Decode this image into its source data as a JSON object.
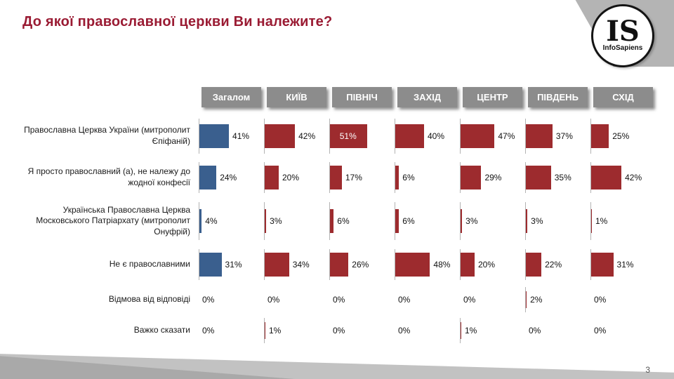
{
  "page": {
    "title": "До якої православної церкви Ви належите?",
    "page_number": "3"
  },
  "logo": {
    "initials": "IS",
    "name": "InfoSapiens"
  },
  "colors": {
    "title": "#9a1b33",
    "header_bg": "#8c8c8c",
    "bar_total": "#3a5f8e",
    "bar_region": "#9d2b2e"
  },
  "chart_data": {
    "type": "bar",
    "orientation": "horizontal",
    "title": "До якої православної церкви Ви належите?",
    "legend_position": "none",
    "grid": "off",
    "value_suffix": "%",
    "xlim": [
      0,
      60
    ],
    "columns": [
      "Загалом",
      "КИЇВ",
      "ПІВНІЧ",
      "ЗАХІД",
      "ЦЕНТР",
      "ПІВДЕНЬ",
      "СХІД"
    ],
    "rows": [
      {
        "label": "Православна Церква України (митрополит Єпіфаній)",
        "values": [
          41,
          42,
          51,
          40,
          47,
          37,
          25
        ]
      },
      {
        "label": "Я просто православний (а), не належу до жодної конфесії",
        "values": [
          24,
          20,
          17,
          6,
          29,
          35,
          42
        ]
      },
      {
        "label": "Українська Православна Церква Московського Патріархату (митрополит Онуфрій)",
        "values": [
          4,
          3,
          6,
          6,
          3,
          3,
          1
        ]
      },
      {
        "label": "Не є православними",
        "values": [
          31,
          34,
          26,
          48,
          20,
          22,
          31
        ]
      },
      {
        "label": "Відмова від відповіді",
        "values": [
          0,
          0,
          0,
          0,
          0,
          2,
          0
        ]
      },
      {
        "label": "Важко сказати",
        "values": [
          0,
          1,
          0,
          0,
          1,
          0,
          0
        ]
      }
    ]
  }
}
